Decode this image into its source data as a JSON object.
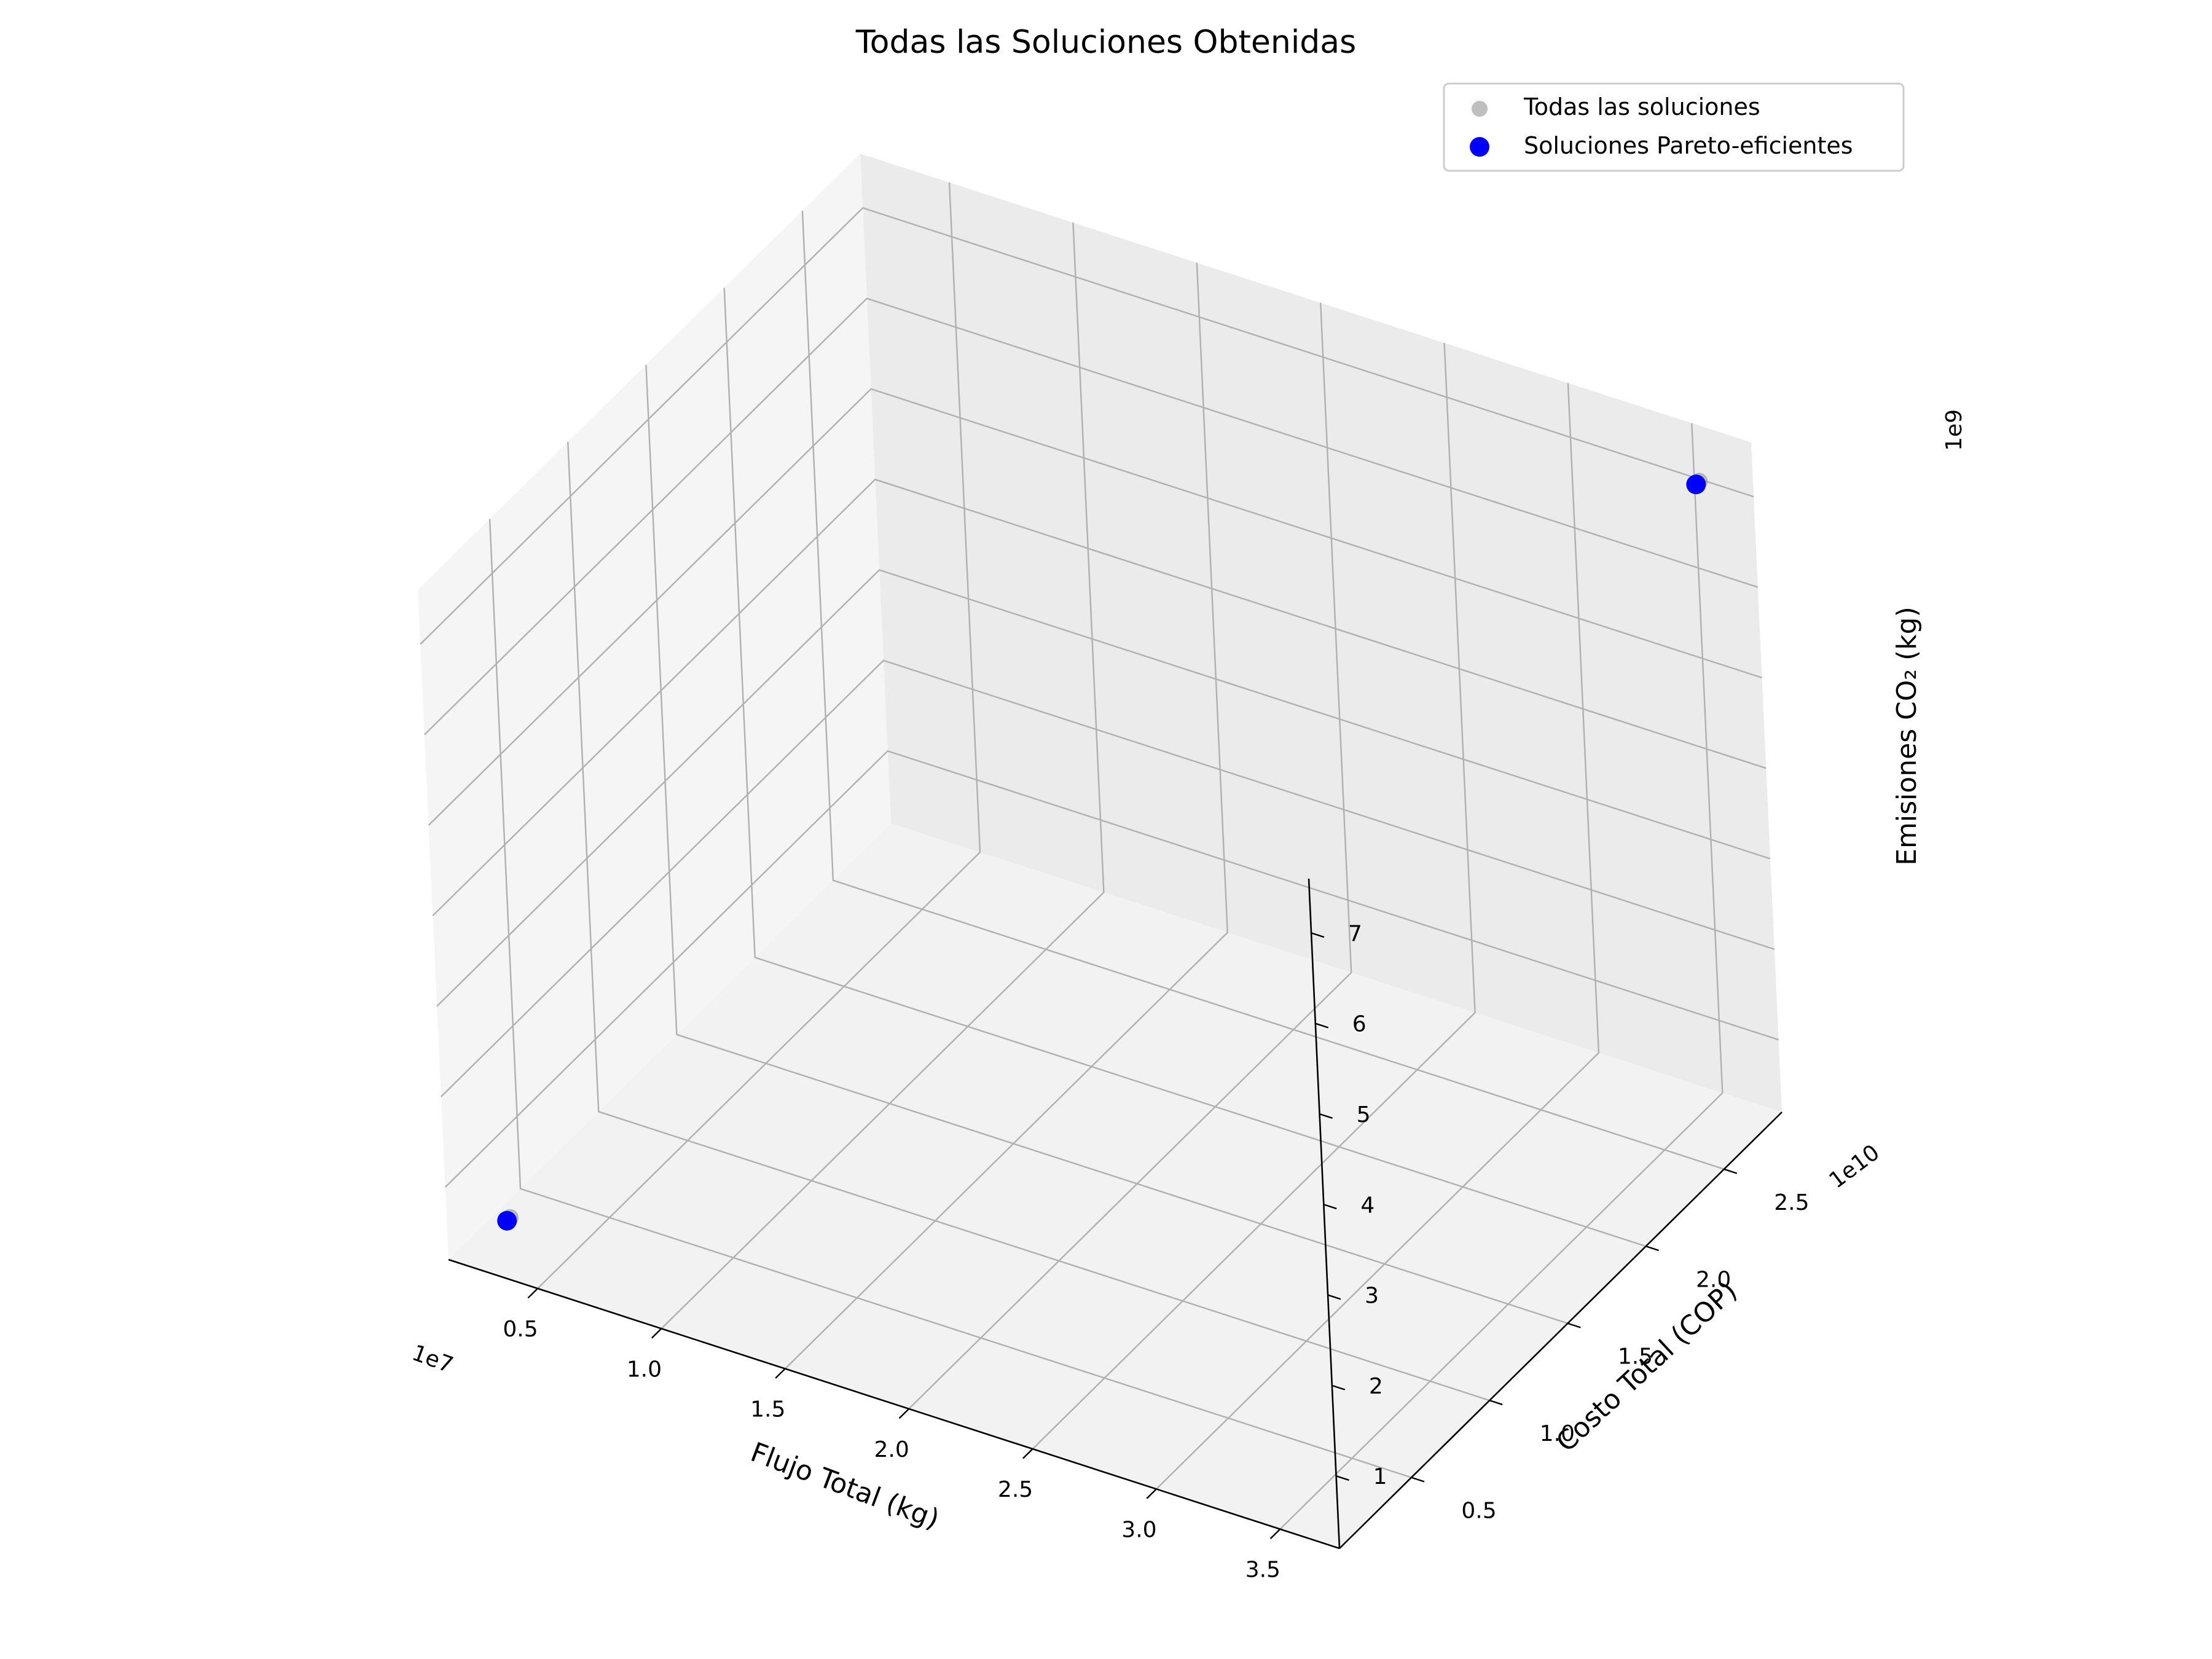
{
  "chart_data": {
    "type": "scatter",
    "title": "Todas las Soluciones Obtenidas",
    "xlabel": "Flujo Total (kg)",
    "ylabel": "Costo Total (COP)",
    "zlabel": "Emisiones CO₂ (kg)",
    "x_offset_label": "1e7",
    "y_offset_label": "1e10",
    "z_offset_label": "1e9",
    "x_ticks": [
      "0.5",
      "1.0",
      "1.5",
      "2.0",
      "2.5",
      "3.0",
      "3.5"
    ],
    "y_ticks": [
      "0.5",
      "1.0",
      "1.5",
      "2.0",
      "2.5"
    ],
    "z_ticks": [
      "1",
      "2",
      "3",
      "4",
      "5",
      "6",
      "7"
    ],
    "xlim": [
      0.14,
      3.74
    ],
    "ylim": [
      0.04,
      2.87
    ],
    "zlim": [
      0.2,
      7.6
    ],
    "grid": true,
    "legend_position": "upper right",
    "series": [
      {
        "name": "Todas las soluciones",
        "color": "#808080",
        "points": [
          {
            "x": 0.3,
            "y": 0.17,
            "z": 0.55
          },
          {
            "x": 3.6,
            "y": 2.73,
            "z": 7.25
          }
        ]
      },
      {
        "name": "Soluciones Pareto-eficientes",
        "color": "#0000ff",
        "points": [
          {
            "x": 0.3,
            "y": 0.17,
            "z": 0.55
          },
          {
            "x": 3.6,
            "y": 2.73,
            "z": 7.25
          }
        ]
      }
    ]
  }
}
